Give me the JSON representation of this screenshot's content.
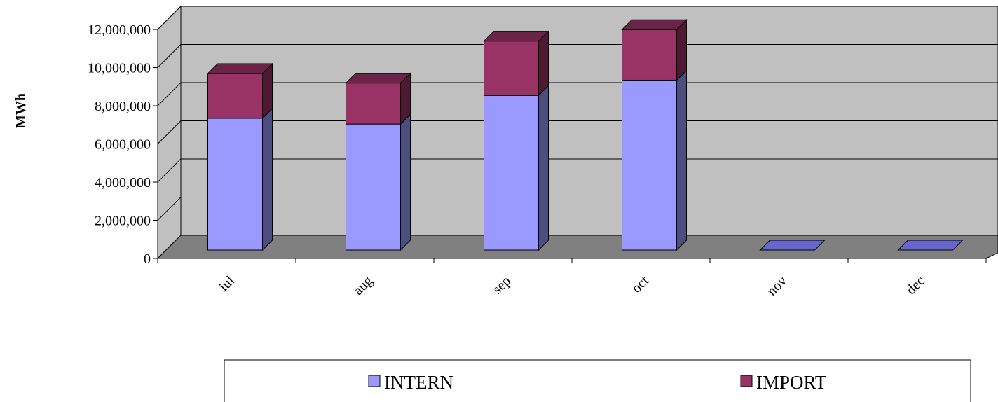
{
  "chart_data": {
    "type": "bar",
    "stacked": true,
    "three_d": true,
    "categories": [
      "iul",
      "aug",
      "sep",
      "oct",
      "nov",
      "dec"
    ],
    "series": [
      {
        "name": "INTERN",
        "values": [
          6900000,
          6600000,
          8100000,
          8900000,
          0,
          0
        ],
        "color": "#9999FF"
      },
      {
        "name": "IMPORT",
        "values": [
          2350000,
          2150000,
          2850000,
          2650000,
          0,
          0
        ],
        "color": "#993366"
      }
    ],
    "ylabel": "MWh",
    "ylim": [
      0,
      12000000
    ],
    "yticks": [
      0,
      2000000,
      4000000,
      6000000,
      8000000,
      10000000,
      12000000
    ],
    "ytick_labels": [
      "0",
      "2,000,000",
      "4,000,000",
      "6,000,000",
      "8,000,000",
      "10,000,000",
      "12,000,000"
    ],
    "grid": true,
    "legend_position": "bottom",
    "colors": {
      "wall": "#C0C0C0",
      "floor": "#808080",
      "intern_top": "#BFBFFF",
      "intern_side": "#4D4D80",
      "import_top": "#6B2447",
      "import_side": "#4D1933",
      "floor_bar": "#6666CC"
    }
  }
}
